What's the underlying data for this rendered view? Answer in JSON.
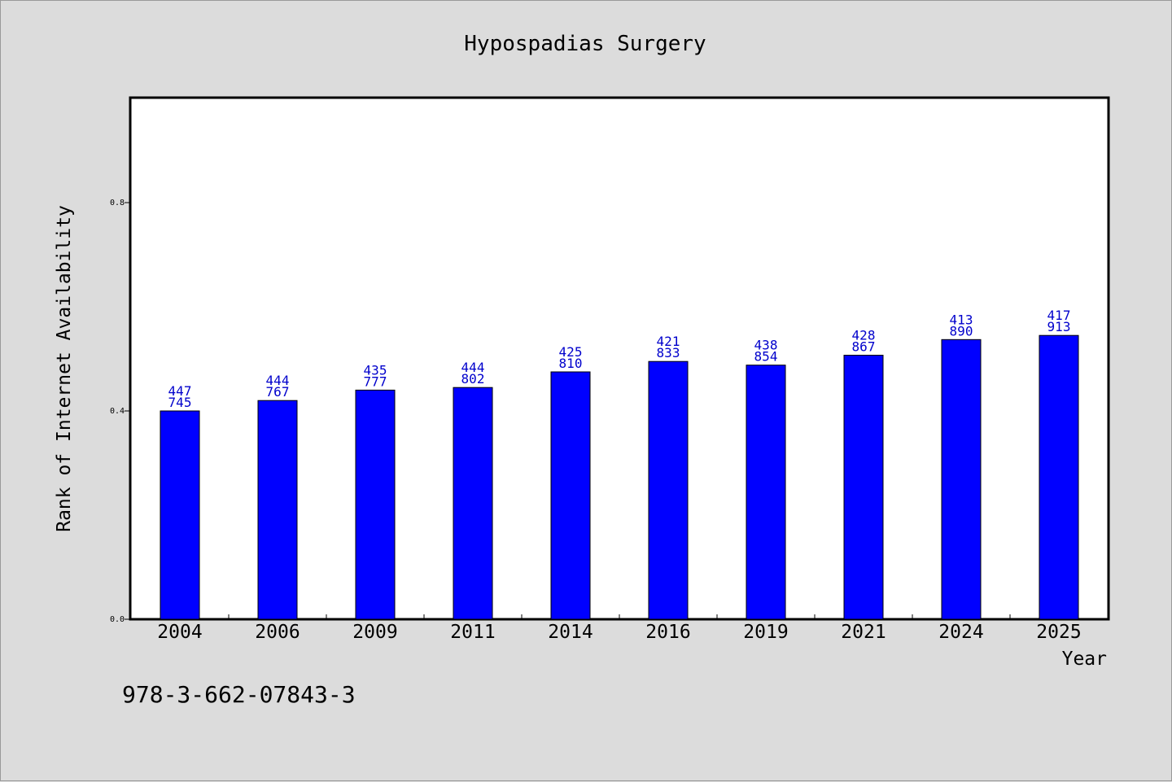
{
  "chart_data": {
    "type": "bar",
    "title": "Hypospadias Surgery",
    "xlabel": "Year",
    "ylabel": "Rank of Internet Availability",
    "ylim": [
      0,
      1.0
    ],
    "yticks": [
      0.0,
      0.4,
      0.8
    ],
    "ytick_labels": [
      "0.0",
      "0.4",
      "0.8"
    ],
    "grid": false,
    "legend": "none",
    "categories": [
      "2004",
      "2006",
      "2009",
      "2011",
      "2014",
      "2016",
      "2019",
      "2021",
      "2024",
      "2025"
    ],
    "values": [
      0.4,
      0.42,
      0.44,
      0.445,
      0.475,
      0.495,
      0.488,
      0.507,
      0.537,
      0.545
    ],
    "data_labels": [
      [
        "447",
        "745"
      ],
      [
        "444",
        "767"
      ],
      [
        "435",
        "777"
      ],
      [
        "444",
        "802"
      ],
      [
        "425",
        "810"
      ],
      [
        "421",
        "833"
      ],
      [
        "438",
        "854"
      ],
      [
        "428",
        "867"
      ],
      [
        "413",
        "890"
      ],
      [
        "417",
        "913"
      ]
    ],
    "bar_color": "#0000ff",
    "data_label_color": "#0000cc"
  },
  "footer": {
    "isbn": "978-3-662-07843-3"
  }
}
